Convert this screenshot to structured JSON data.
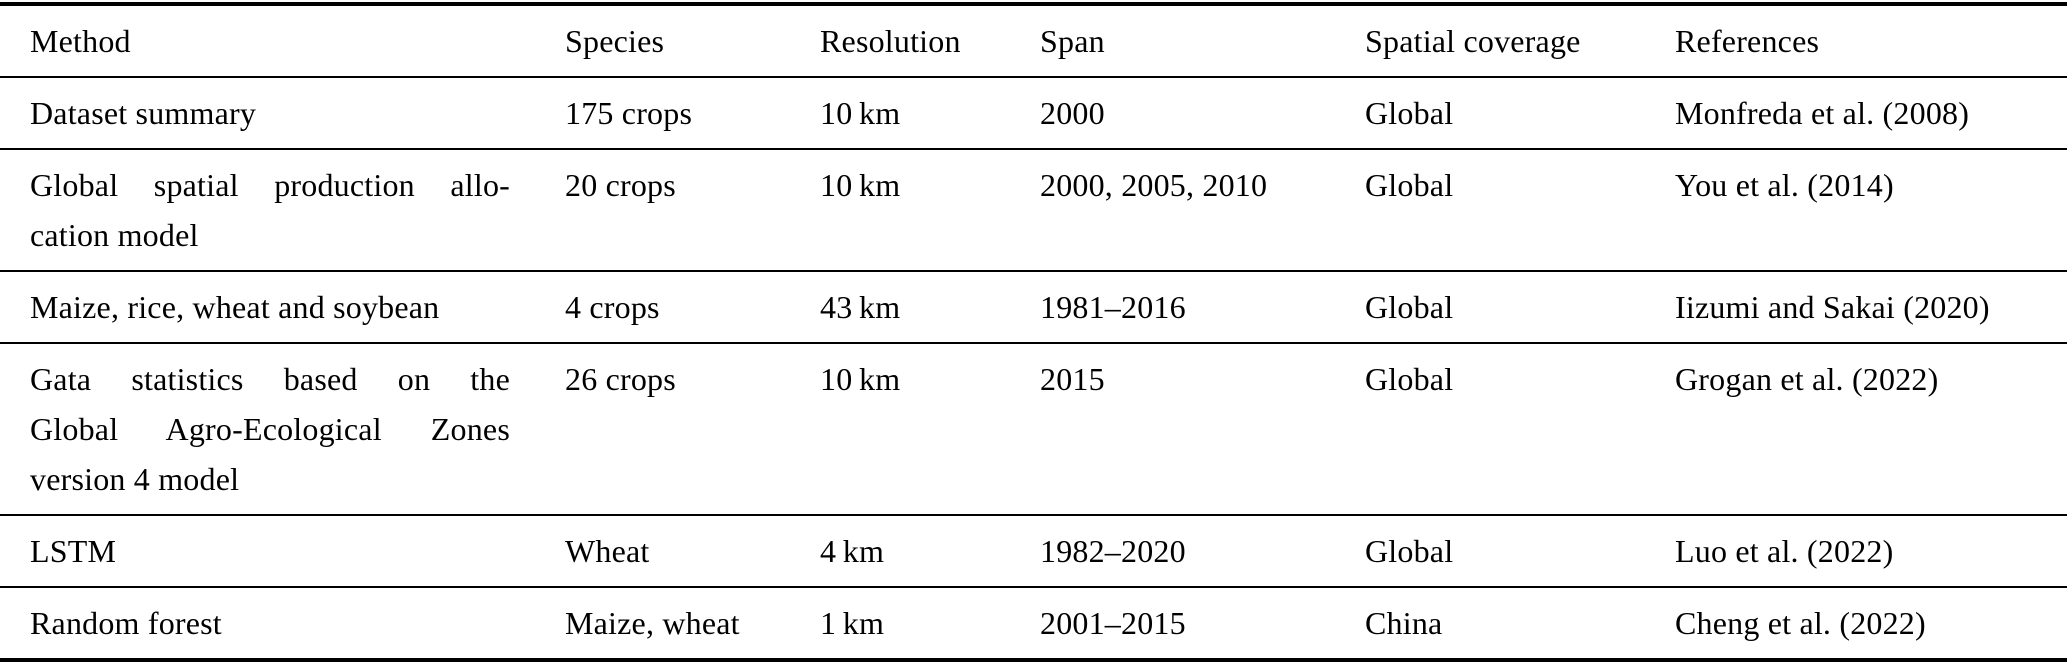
{
  "page": {
    "background_color": "#ffffff",
    "text_color": "#000000",
    "rule_color": "#000000"
  },
  "table": {
    "columns": [
      "Method",
      "Species",
      "Resolution",
      "Span",
      "Spatial coverage",
      "References"
    ],
    "rows": [
      {
        "method": "Dataset summary",
        "species": "175 crops",
        "resolution": "10 km",
        "span": "2000",
        "coverage": "Global",
        "reference": "Monfreda et al. (2008)"
      },
      {
        "method": [
          "Global spatial production allo-",
          "cation model"
        ],
        "species": "20 crops",
        "resolution": "10 km",
        "span": "2000, 2005, 2010",
        "coverage": "Global",
        "reference": "You et al. (2014)"
      },
      {
        "method": "Maize, rice, wheat and soybean",
        "species": "4 crops",
        "resolution": "43 km",
        "span": "1981–2016",
        "coverage": "Global",
        "reference": "Iizumi and Sakai (2020)"
      },
      {
        "method": [
          "Gata statistics based on the",
          "Global Agro-Ecological Zones",
          "version 4 model"
        ],
        "species": "26 crops",
        "resolution": "10 km",
        "span": "2015",
        "coverage": "Global",
        "reference": "Grogan et al. (2022)"
      },
      {
        "method": "LSTM",
        "species": "Wheat",
        "resolution": "4 km",
        "span": "1982–2020",
        "coverage": "Global",
        "reference": "Luo et al. (2022)"
      },
      {
        "method": "Random forest",
        "species": "Maize, wheat",
        "resolution": "1 km",
        "span": "2001–2015",
        "coverage": "China",
        "reference": "Cheng et al. (2022)"
      }
    ]
  }
}
